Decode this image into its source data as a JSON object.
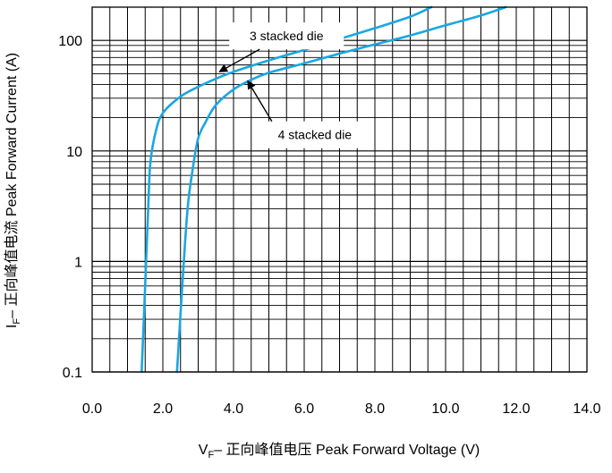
{
  "chart_data": {
    "type": "line",
    "title": "",
    "xlabel": {
      "symbol": "V",
      "subscript": "F",
      "rest": "– 正向峰值电压 Peak Forward Voltage (V)"
    },
    "ylabel": {
      "symbol": "I",
      "subscript": "F",
      "rest": "– 正向峰值电流 Peak Forward Current (A)"
    },
    "x_ticks": [
      "0.0",
      "2.0",
      "4.0",
      "6.0",
      "8.0",
      "10.0",
      "12.0",
      "14.0"
    ],
    "y_ticks": [
      "0.1",
      "1",
      "10",
      "100"
    ],
    "xlim": [
      0,
      14
    ],
    "ylim": [
      0.1,
      200
    ],
    "y_scale": "log",
    "grid": true,
    "line_color": "#1aa7e0",
    "series": [
      {
        "name": "3 stacked die",
        "points": [
          [
            1.4,
            0.1
          ],
          [
            1.5,
            0.6
          ],
          [
            1.6,
            4
          ],
          [
            1.65,
            8
          ],
          [
            1.8,
            15
          ],
          [
            2.0,
            22
          ],
          [
            2.5,
            31
          ],
          [
            3.0,
            38
          ],
          [
            3.5,
            45
          ],
          [
            4.0,
            52
          ],
          [
            5.0,
            66
          ],
          [
            6.0,
            82
          ],
          [
            7.0,
            103
          ],
          [
            8.0,
            129
          ],
          [
            9.0,
            164
          ],
          [
            9.6,
            200
          ]
        ]
      },
      {
        "name": "4 stacked die",
        "points": [
          [
            2.4,
            0.1
          ],
          [
            2.55,
            0.6
          ],
          [
            2.7,
            3
          ],
          [
            2.85,
            7
          ],
          [
            3.0,
            13
          ],
          [
            3.2,
            18
          ],
          [
            3.5,
            26
          ],
          [
            4.0,
            36
          ],
          [
            4.5,
            44
          ],
          [
            5.0,
            51
          ],
          [
            6.0,
            62
          ],
          [
            7.0,
            76
          ],
          [
            8.0,
            92
          ],
          [
            9.0,
            111
          ],
          [
            10.0,
            137
          ],
          [
            11.0,
            168
          ],
          [
            11.7,
            200
          ]
        ]
      }
    ],
    "annotations": [
      {
        "label": "3 stacked die",
        "series": 0,
        "target": [
          3.6,
          52
        ],
        "text_anchor": [
          5.5,
          110
        ]
      },
      {
        "label": "4 stacked die",
        "series": 1,
        "target": [
          4.4,
          43
        ],
        "text_anchor": [
          6.3,
          14
        ]
      }
    ]
  }
}
